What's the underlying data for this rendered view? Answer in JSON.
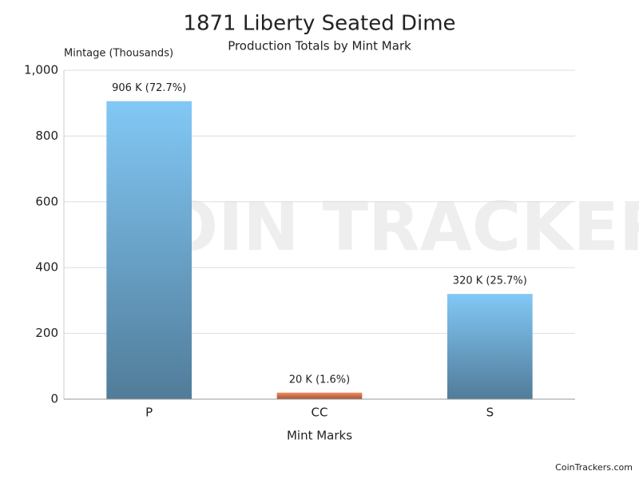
{
  "chart_data": {
    "type": "bar",
    "title": "1871 Liberty Seated Dime",
    "subtitle": "Production Totals by Mint Mark",
    "y_label": "Mintage (Thousands)",
    "x_label": "Mint Marks",
    "categories": [
      "P",
      "CC",
      "S"
    ],
    "values": [
      906,
      20,
      320
    ],
    "value_labels": [
      "906 K (72.7%)",
      "20 K (1.6%)",
      "320 K (25.7%)"
    ],
    "colors": [
      "#82c8f6",
      "#f98a5c",
      "#82c8f6"
    ],
    "ylim": [
      0,
      1000
    ],
    "yticks": [
      0,
      200,
      400,
      600,
      800,
      {
        "value": 1000,
        "label": "1,000"
      }
    ],
    "grid": true,
    "watermark": "COIN TRACKERS",
    "footer": "CoinTrackers.com"
  }
}
